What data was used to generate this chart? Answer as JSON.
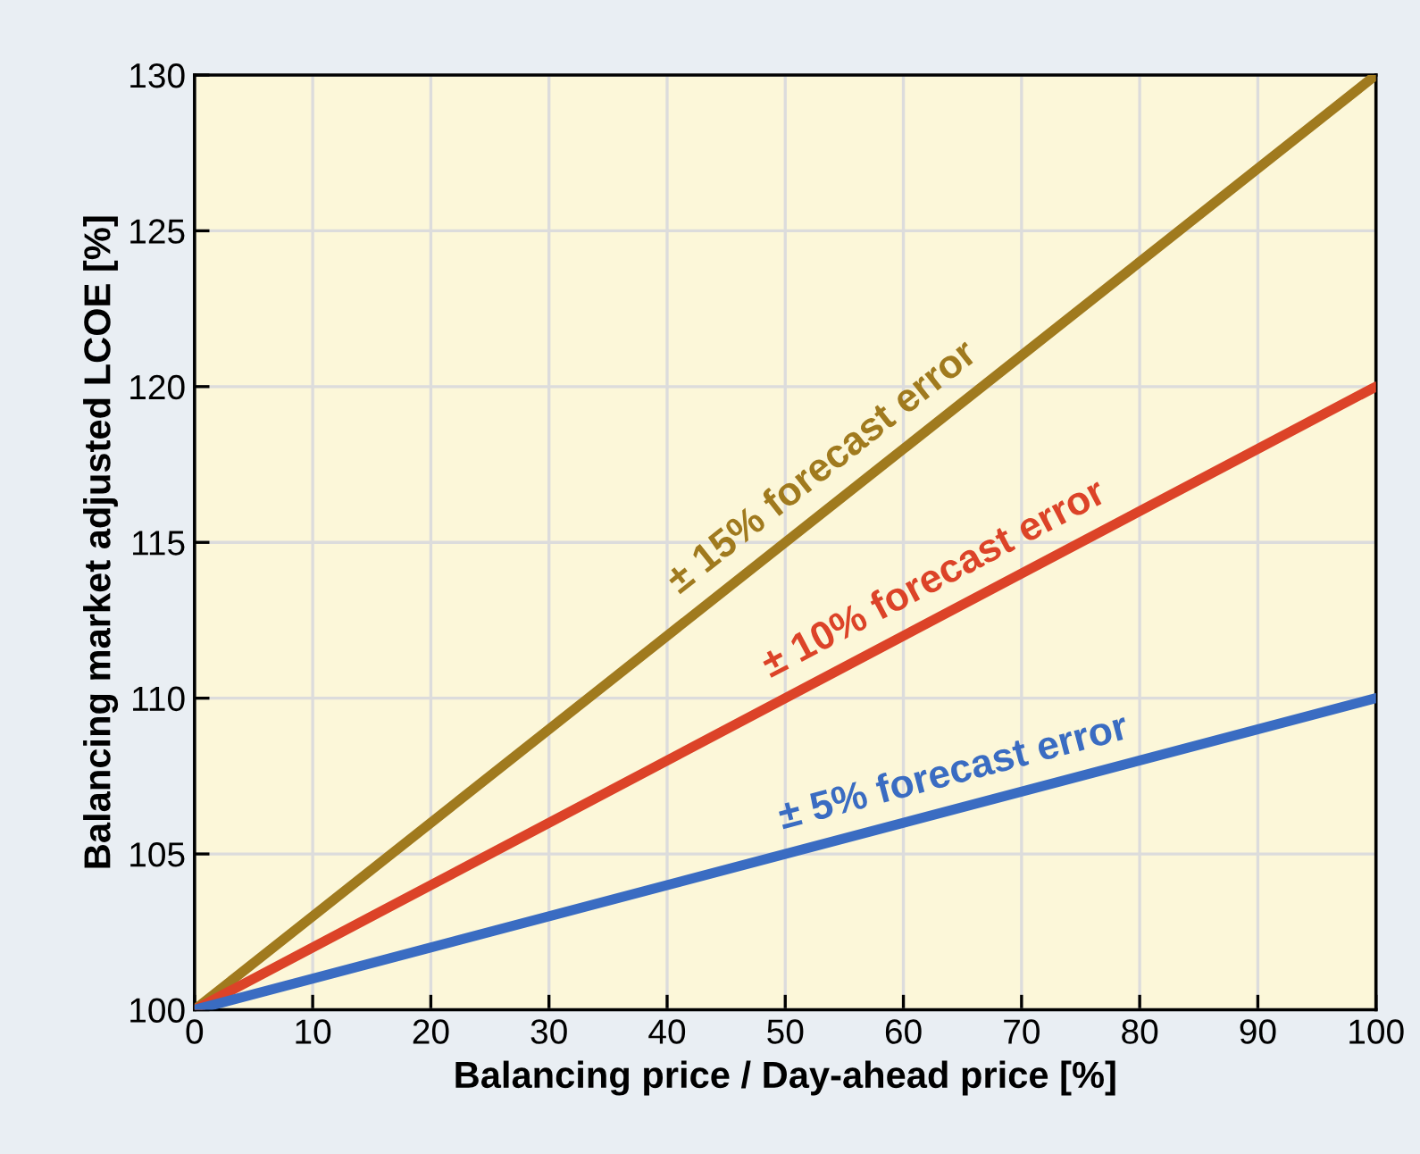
{
  "chart_data": {
    "type": "line",
    "xlabel": "Balancing price / Day-ahead price [%]",
    "ylabel": "Balancing market adjusted LCOE [%]",
    "x": [
      0,
      100
    ],
    "series": [
      {
        "color": "#a07a1e",
        "values": [
          100,
          130
        ]
      },
      {
        "color": "#dc4328",
        "values": [
          100,
          120
        ]
      },
      {
        "color": "#3a6cc2",
        "values": [
          100,
          110
        ]
      }
    ],
    "annotations": [
      {
        "text": "± 15% forecast error",
        "x": 55,
        "y": 116.5
      },
      {
        "text": "± 10% forecast error",
        "x": 64,
        "y": 112.8
      },
      {
        "text": "± 5% forecast error",
        "x": 65,
        "y": 106.5
      }
    ],
    "xlim": [
      0,
      100
    ],
    "ylim": [
      100,
      130
    ],
    "xticks": [
      0,
      10,
      20,
      30,
      40,
      50,
      60,
      70,
      80,
      90,
      100
    ],
    "yticks": [
      100,
      105,
      110,
      115,
      120,
      125,
      130
    ],
    "grid": true,
    "line_style": "solid",
    "marker": "none"
  }
}
